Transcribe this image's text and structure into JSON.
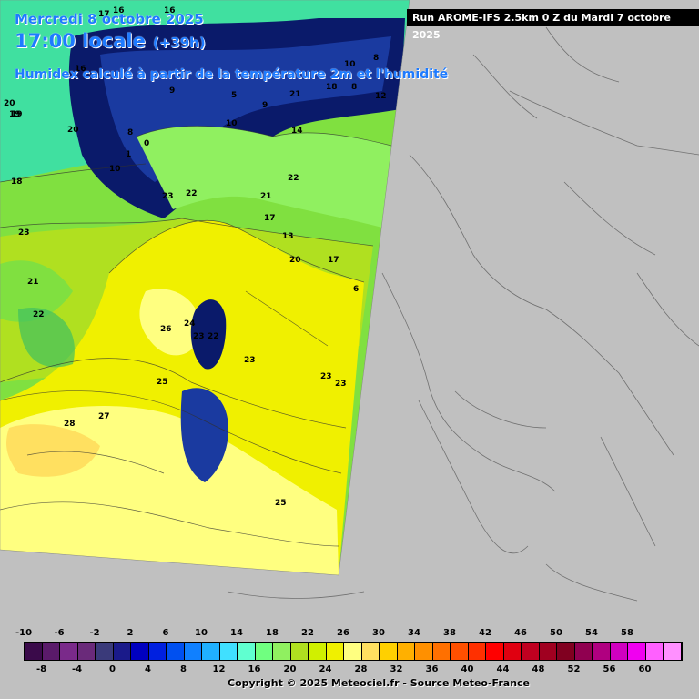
{
  "header": {
    "date_line": "Mercredi 8 octobre 2025",
    "time_line": "17:00 locale",
    "lead_time": "(+39h)",
    "description": "Humidex calculé à partir de la température 2m et l'humidité"
  },
  "run_info": "Run AROME-IFS 2.5km 0 Z du Mardi 7 octobre 2025",
  "legend": {
    "top_ticks": [
      "-10",
      "-6",
      "-2",
      "2",
      "6",
      "10",
      "14",
      "18",
      "22",
      "26",
      "30",
      "34",
      "38",
      "42",
      "46",
      "50",
      "54",
      "58"
    ],
    "bottom_ticks": [
      "-8",
      "-4",
      "0",
      "4",
      "8",
      "12",
      "16",
      "20",
      "24",
      "28",
      "32",
      "36",
      "40",
      "44",
      "48",
      "52",
      "56",
      "60"
    ],
    "colors": [
      "#3a0a4a",
      "#5a1a6a",
      "#7a2a8a",
      "#6a2a7a",
      "#3a3a7a",
      "#1a1a8a",
      "#0000c0",
      "#0020e0",
      "#0050f0",
      "#1080ff",
      "#20b0ff",
      "#40e0ff",
      "#60ffd0",
      "#70ff80",
      "#90f060",
      "#b0e020",
      "#d0f000",
      "#f0f000",
      "#ffff80",
      "#ffe060",
      "#ffd000",
      "#ffb000",
      "#ff9000",
      "#ff7000",
      "#ff5000",
      "#ff3000",
      "#ff0000",
      "#e00010",
      "#c00020",
      "#a00020",
      "#800020",
      "#900050",
      "#b00080",
      "#d000c0",
      "#f000f0",
      "#ff60ff",
      "#ff90ff"
    ]
  },
  "contour_labels": [
    "16",
    "17",
    "16",
    "16",
    "19",
    "20",
    "19",
    "20",
    "18",
    "23",
    "21",
    "22",
    "9",
    "8",
    "1",
    "0",
    "10",
    "8",
    "5",
    "9",
    "14",
    "18",
    "10",
    "10",
    "8",
    "12",
    "21",
    "23",
    "22",
    "22",
    "21",
    "17",
    "13",
    "20",
    "17",
    "6",
    "24",
    "23",
    "22",
    "26",
    "25",
    "23",
    "23",
    "23",
    "28",
    "27",
    "25"
  ],
  "copyright": "Copyright © 2025 Meteociel.fr - Source Meteo-France"
}
